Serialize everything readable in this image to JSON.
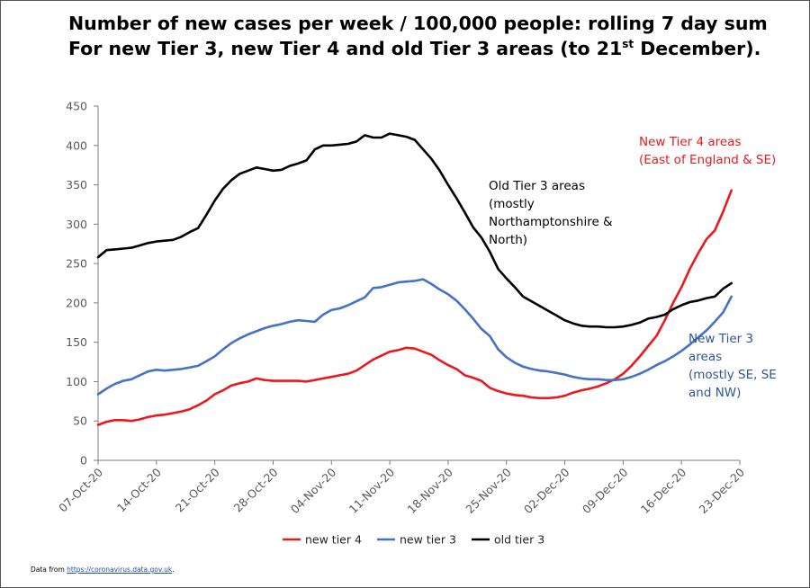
{
  "chart_data": {
    "type": "line",
    "title_line1": "Number of new cases per week / 100,000 people: rolling 7 day sum",
    "title_line2_pre": "For new Tier 3, new Tier 4 and old Tier 3 areas (to 21",
    "title_line2_sup": "st",
    "title_line2_post": " December).",
    "xlabel": "",
    "ylabel": "",
    "ylim": [
      0,
      450
    ],
    "yticks": [
      0,
      50,
      100,
      150,
      200,
      250,
      300,
      350,
      400,
      450
    ],
    "xlim": [
      "2020-10-07",
      "2020-12-23"
    ],
    "xticks": [
      "07-Oct-20",
      "14-Oct-20",
      "21-Oct-20",
      "28-Oct-20",
      "04-Nov-20",
      "11-Nov-20",
      "18-Nov-20",
      "25-Nov-20",
      "02-Dec-20",
      "09-Dec-20",
      "16-Dec-20",
      "23-Dec-20"
    ],
    "grid": false,
    "legend": "bottom",
    "x_start": "2020-10-07",
    "x_end": "2020-12-21",
    "series": [
      {
        "name": "new tier 4",
        "color": "#e8191f",
        "values": [
          45,
          49,
          51,
          51,
          50,
          52,
          55,
          57,
          58,
          60,
          62,
          65,
          70,
          76,
          84,
          89,
          95,
          98,
          100,
          104,
          102,
          101,
          101,
          101,
          101,
          100,
          102,
          104,
          106,
          108,
          110,
          114,
          121,
          128,
          133,
          138,
          140,
          143,
          142,
          138,
          134,
          127,
          121,
          116,
          108,
          105,
          101,
          92,
          88,
          85,
          83,
          82,
          80,
          79,
          79,
          80,
          82,
          86,
          89,
          91,
          94,
          98,
          103,
          110,
          120,
          132,
          145,
          158,
          178,
          200,
          220,
          243,
          263,
          281,
          292,
          316,
          343
        ]
      },
      {
        "name": "new tier 3",
        "color": "#4472c4",
        "values": [
          84,
          91,
          97,
          101,
          103,
          108,
          113,
          115,
          114,
          115,
          116,
          118,
          120,
          126,
          132,
          141,
          149,
          155,
          160,
          164,
          168,
          171,
          173,
          176,
          178,
          177,
          176,
          185,
          191,
          193,
          197,
          202,
          207,
          219,
          220,
          223,
          226,
          227,
          228,
          230,
          224,
          217,
          211,
          203,
          192,
          180,
          167,
          158,
          141,
          131,
          124,
          119,
          116,
          114,
          113,
          111,
          109,
          106,
          104,
          103,
          103,
          102,
          102,
          103,
          106,
          110,
          115,
          121,
          126,
          132,
          139,
          147,
          156,
          165,
          176,
          188,
          208
        ]
      },
      {
        "name": "old tier 3",
        "color": "#000000",
        "values": [
          258,
          267,
          268,
          269,
          270,
          273,
          276,
          278,
          279,
          280,
          284,
          290,
          295,
          312,
          330,
          345,
          356,
          364,
          368,
          372,
          370,
          368,
          369,
          374,
          377,
          381,
          395,
          400,
          400,
          401,
          402,
          405,
          413,
          410,
          410,
          415,
          413,
          411,
          407,
          395,
          383,
          368,
          350,
          333,
          315,
          296,
          283,
          265,
          243,
          231,
          220,
          208,
          202,
          196,
          190,
          184,
          178,
          174,
          171,
          170,
          170,
          169,
          169,
          170,
          172,
          175,
          180,
          182,
          185,
          192,
          197,
          201,
          203,
          206,
          208,
          218,
          225
        ]
      }
    ],
    "annotations": {
      "tier4": [
        "New Tier 4 areas",
        "(East of England & SE)"
      ],
      "old_tier3": [
        "Old Tier 3 areas",
        "(mostly",
        "Northamptonshire &",
        "North)"
      ],
      "tier3": [
        "New Tier 3",
        "areas",
        "(mostly SE, SE",
        "and NW)"
      ]
    },
    "legend_items": [
      "new tier 4",
      "new tier 3",
      "old tier 3"
    ]
  },
  "source": {
    "prefix": "Data from",
    "link": "https://coronavirus.data.gov.uk"
  }
}
